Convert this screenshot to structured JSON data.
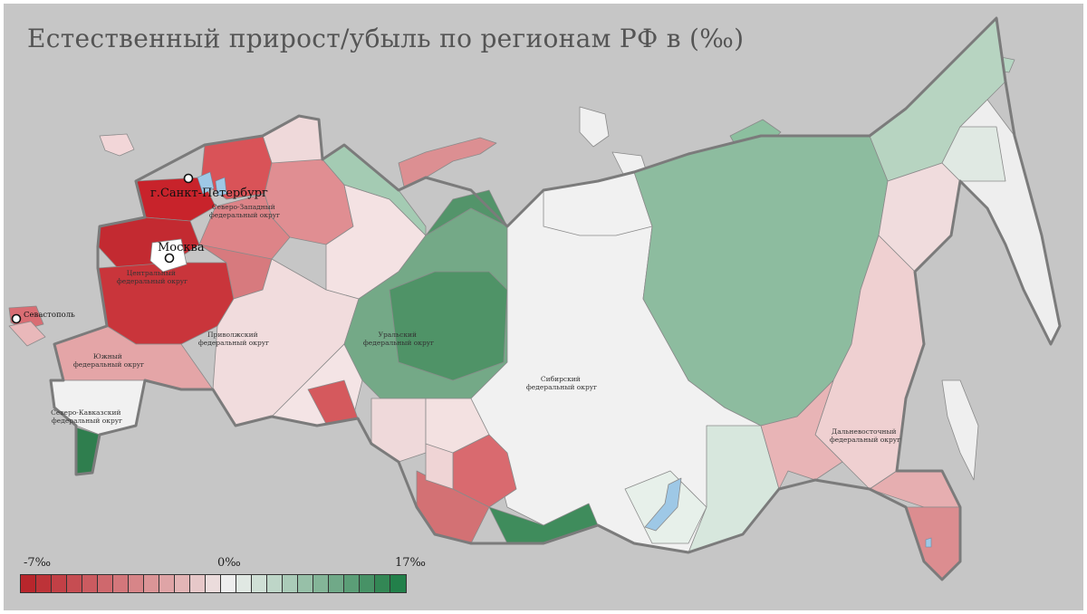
{
  "title": "Естественный прирост/убыль по регионам РФ в (‰)",
  "cities": {
    "spb": "г.Санкт-Петербург",
    "moscow": "Москва",
    "sevastopol": "Севастополь"
  },
  "districts": {
    "northwest": [
      "Северо-Западный",
      "федеральный округ"
    ],
    "central": [
      "Центральный",
      "федеральный округ"
    ],
    "south": [
      "Южный",
      "федеральный округ"
    ],
    "north_caucasus": [
      "Северо-Кавказский",
      "федеральный округ"
    ],
    "volga": [
      "Приволжский",
      "федеральный округ"
    ],
    "ural": [
      "Уральский",
      "федеральный округ"
    ],
    "siberia": [
      "Сибирский",
      "федеральный округ"
    ],
    "far_east": [
      "Дальневосточный",
      "федеральный округ"
    ]
  },
  "legend": {
    "min_label": "-7‰",
    "mid_label": "0‰",
    "max_label": "17‰",
    "colors": [
      "#b8262c",
      "#bd3338",
      "#c24046",
      "#c64d52",
      "#cb5b60",
      "#cf686d",
      "#d3777b",
      "#d78588",
      "#db9597",
      "#dfa4a6",
      "#e3b5b6",
      "#e7c8c9",
      "#ebdcdc",
      "#eeeeee",
      "#e0e8e3",
      "#cfdfd5",
      "#bed6c8",
      "#aacbb8",
      "#97c0a8",
      "#84b598",
      "#70a988",
      "#5b9e77",
      "#479266",
      "#338755",
      "#22804a"
    ]
  },
  "colors": {
    "background": "#c6c6c6",
    "border": "#777777",
    "water": "#9ec8e6"
  }
}
